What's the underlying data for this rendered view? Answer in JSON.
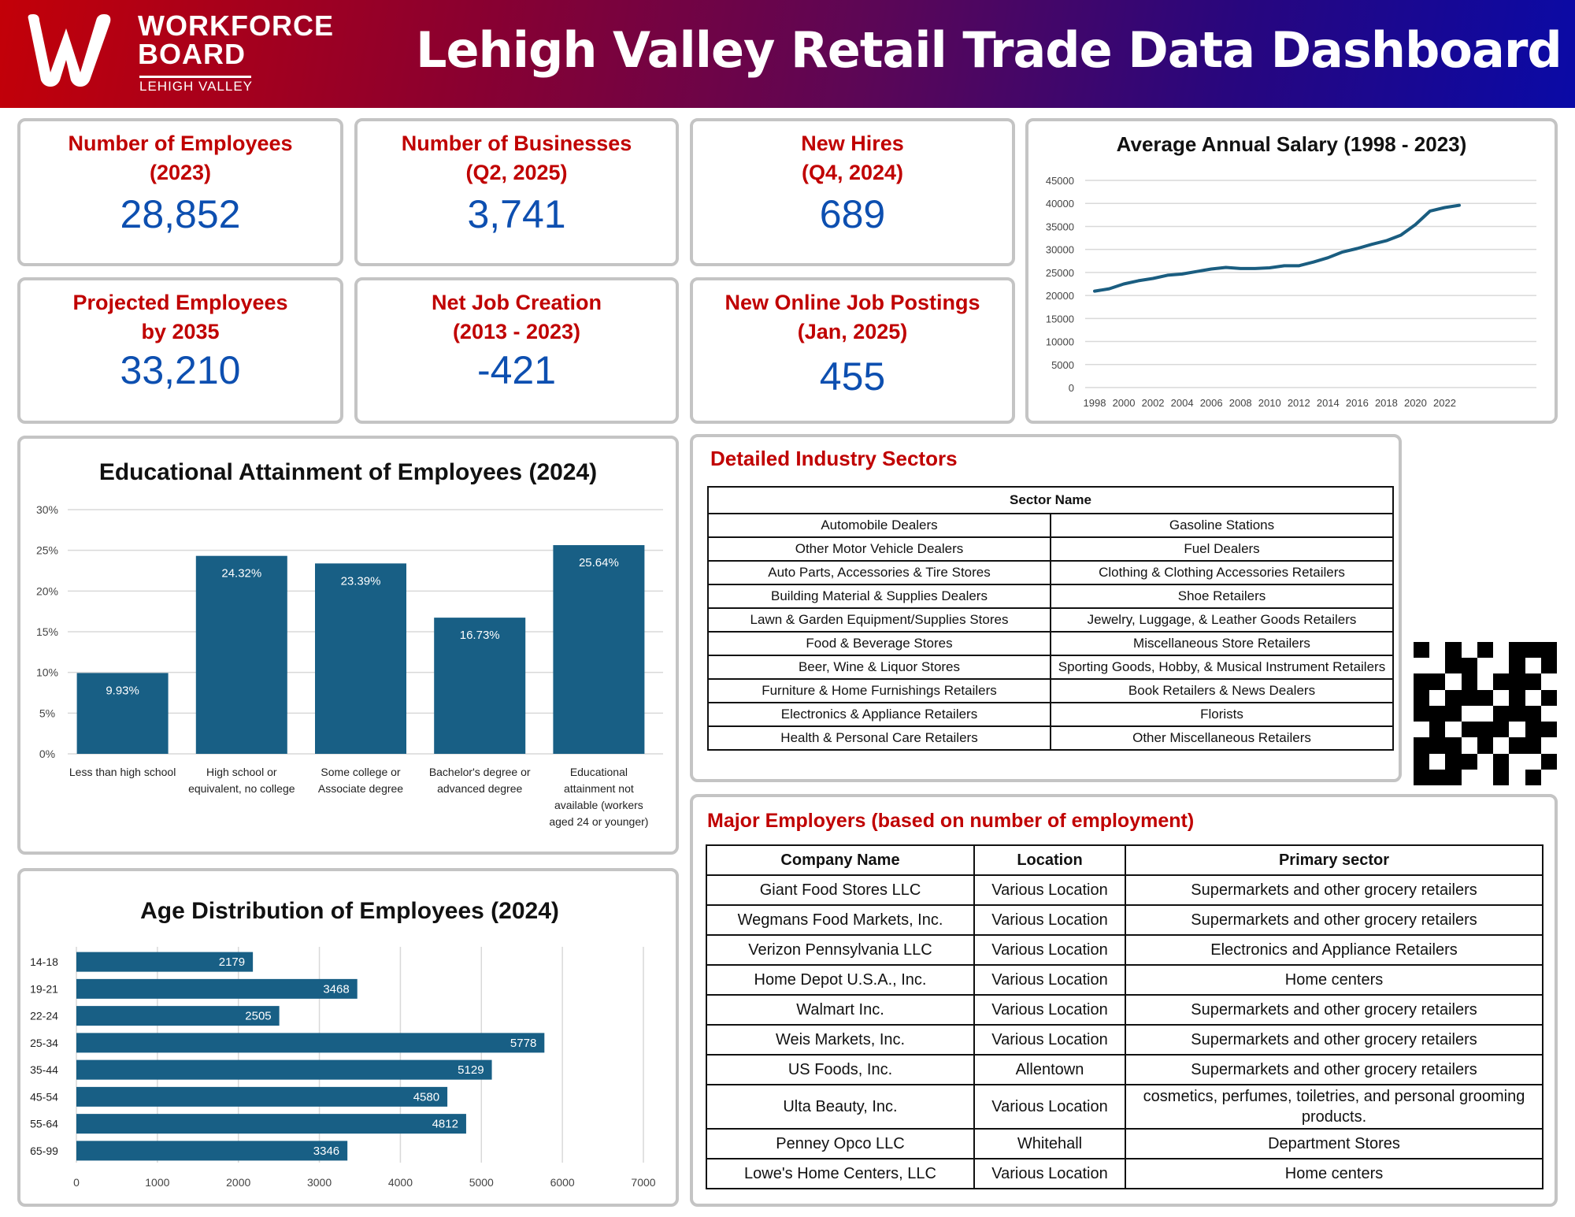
{
  "header": {
    "logo": {
      "line1": "WORKFORCE",
      "line2": "BOARD",
      "line3": "LEHIGH VALLEY"
    },
    "title": "Lehigh Valley Retail Trade Data Dashboard",
    "gradient_colors": [
      "#c30008",
      "#0a0aa6"
    ]
  },
  "colors": {
    "kpi_label": "#c00000",
    "kpi_value": "#0d4fb0",
    "bar": "#185f85",
    "line": "#1a5d80"
  },
  "kpis": [
    {
      "label_line1": "Number of Employees",
      "label_line2": "(2023)",
      "value": "28,852"
    },
    {
      "label_line1": "Number of Businesses",
      "label_line2": "(Q2, 2025)",
      "value": "3,741"
    },
    {
      "label_line1": "New Hires",
      "label_line2": "(Q4, 2024)",
      "value": "689"
    },
    {
      "label_line1": "Projected Employees",
      "label_line2": "by 2035",
      "value": "33,210"
    },
    {
      "label_line1": "Net Job Creation",
      "label_line2": "(2013 - 2023)",
      "value": "-421"
    },
    {
      "label_line1": "New Online Job Postings",
      "label_line2": "(Jan, 2025)",
      "value": "455"
    }
  ],
  "chart_data": [
    {
      "id": "salary",
      "type": "line",
      "title": "Average Annual Salary (1998 - 2023)",
      "xlabel": "",
      "ylabel": "",
      "x": [
        1998,
        1999,
        2000,
        2001,
        2002,
        2003,
        2004,
        2005,
        2006,
        2007,
        2008,
        2009,
        2010,
        2011,
        2012,
        2013,
        2014,
        2015,
        2016,
        2017,
        2018,
        2019,
        2020,
        2021,
        2022,
        2023
      ],
      "series": [
        {
          "name": "Average Annual Salary",
          "values": [
            20950,
            21450,
            22500,
            23200,
            23700,
            24400,
            24650,
            25200,
            25750,
            26100,
            25850,
            25850,
            26000,
            26450,
            26450,
            27250,
            28200,
            29450,
            30200,
            31100,
            31900,
            33100,
            35400,
            38350,
            39100,
            39600
          ]
        }
      ],
      "ylim": [
        0,
        45000
      ],
      "yticks": [
        "0",
        "5000",
        "10000",
        "15000",
        "20000",
        "25000",
        "30000",
        "35000",
        "40000",
        "45000"
      ],
      "xticks": [
        "1998",
        "2000",
        "2002",
        "2004",
        "2006",
        "2008",
        "2010",
        "2012",
        "2014",
        "2016",
        "2018",
        "2020",
        "2022"
      ],
      "grid": true,
      "legend": "none"
    },
    {
      "id": "education",
      "type": "bar",
      "title": "Educational Attainment of Employees (2024)",
      "categories": [
        [
          "Less than high school"
        ],
        [
          "High school or",
          "equivalent, no college"
        ],
        [
          "Some college or",
          "Associate degree"
        ],
        [
          "Bachelor's degree or",
          "advanced degree"
        ],
        [
          "Educational",
          "attainment not",
          "available (workers",
          "aged 24 or younger)"
        ]
      ],
      "values": [
        9.93,
        24.32,
        23.39,
        16.73,
        25.64
      ],
      "data_labels": [
        "9.93%",
        "24.32%",
        "23.39%",
        "16.73%",
        "25.64%"
      ],
      "ylim": [
        0,
        30
      ],
      "yticks": [
        "0%",
        "5%",
        "10%",
        "15%",
        "20%",
        "25%",
        "30%"
      ],
      "xlabel": "",
      "ylabel": "",
      "grid": true,
      "legend": "none"
    },
    {
      "id": "age",
      "type": "bar",
      "orientation": "horizontal",
      "title": "Age Distribution of Employees (2024)",
      "categories": [
        "14-18",
        "19-21",
        "22-24",
        "25-34",
        "35-44",
        "45-54",
        "55-64",
        "65-99"
      ],
      "values": [
        2179,
        3468,
        2505,
        5778,
        5129,
        4580,
        4812,
        3346
      ],
      "xlim": [
        0,
        7000
      ],
      "xticks": [
        "0",
        "1000",
        "2000",
        "3000",
        "4000",
        "5000",
        "6000",
        "7000"
      ],
      "xlabel": "",
      "ylabel": "",
      "grid": true,
      "legend": "none"
    }
  ],
  "sectors": {
    "title": "Detailed Industry Sectors",
    "header": "Sector Name",
    "rows": [
      [
        "Automobile Dealers",
        "Gasoline Stations"
      ],
      [
        "Other Motor Vehicle Dealers",
        "Fuel Dealers"
      ],
      [
        "Auto Parts, Accessories & Tire Stores",
        "Clothing & Clothing Accessories Retailers"
      ],
      [
        "Building Material & Supplies Dealers",
        "Shoe Retailers"
      ],
      [
        "Lawn & Garden Equipment/Supplies Stores",
        "Jewelry, Luggage, & Leather Goods Retailers"
      ],
      [
        "Food & Beverage Stores",
        "Miscellaneous Store Retailers"
      ],
      [
        "Beer, Wine & Liquor Stores",
        "Sporting Goods, Hobby, & Musical Instrument Retailers"
      ],
      [
        "Furniture & Home Furnishings Retailers",
        "Book Retailers & News Dealers"
      ],
      [
        "Electronics & Appliance Retailers",
        "Florists"
      ],
      [
        "Health & Personal Care Retailers",
        "Other Miscellaneous Retailers"
      ]
    ]
  },
  "qr_code": {
    "icon": "qr-code-icon",
    "cells": [
      "101010111",
      "001100101",
      "110101110",
      "101110101",
      "111001110",
      "010111011",
      "111010110",
      "101101001",
      "111001010"
    ]
  },
  "employers": {
    "title": "Major Employers (based on number of employment)",
    "columns": [
      "Company Name",
      "Location",
      "Primary sector"
    ],
    "rows": [
      [
        "Giant Food Stores LLC",
        "Various Location",
        "Supermarkets and other grocery retailers"
      ],
      [
        "Wegmans Food Markets, Inc.",
        "Various Location",
        "Supermarkets and other grocery retailers"
      ],
      [
        "Verizon Pennsylvania LLC",
        "Various Location",
        "Electronics and Appliance Retailers"
      ],
      [
        "Home Depot U.S.A., Inc.",
        "Various Location",
        "Home centers"
      ],
      [
        "Walmart Inc.",
        "Various Location",
        "Supermarkets and other grocery retailers"
      ],
      [
        "Weis Markets, Inc.",
        "Various Location",
        "Supermarkets and other grocery retailers"
      ],
      [
        "US Foods, Inc.",
        "Allentown",
        "Supermarkets and other grocery retailers"
      ],
      [
        "Ulta Beauty, Inc.",
        "Various Location",
        "cosmetics, perfumes, toiletries, and personal grooming products."
      ],
      [
        "Penney Opco LLC",
        "Whitehall",
        "Department Stores"
      ],
      [
        "Lowe's Home Centers, LLC",
        "Various Location",
        "Home centers"
      ]
    ]
  }
}
